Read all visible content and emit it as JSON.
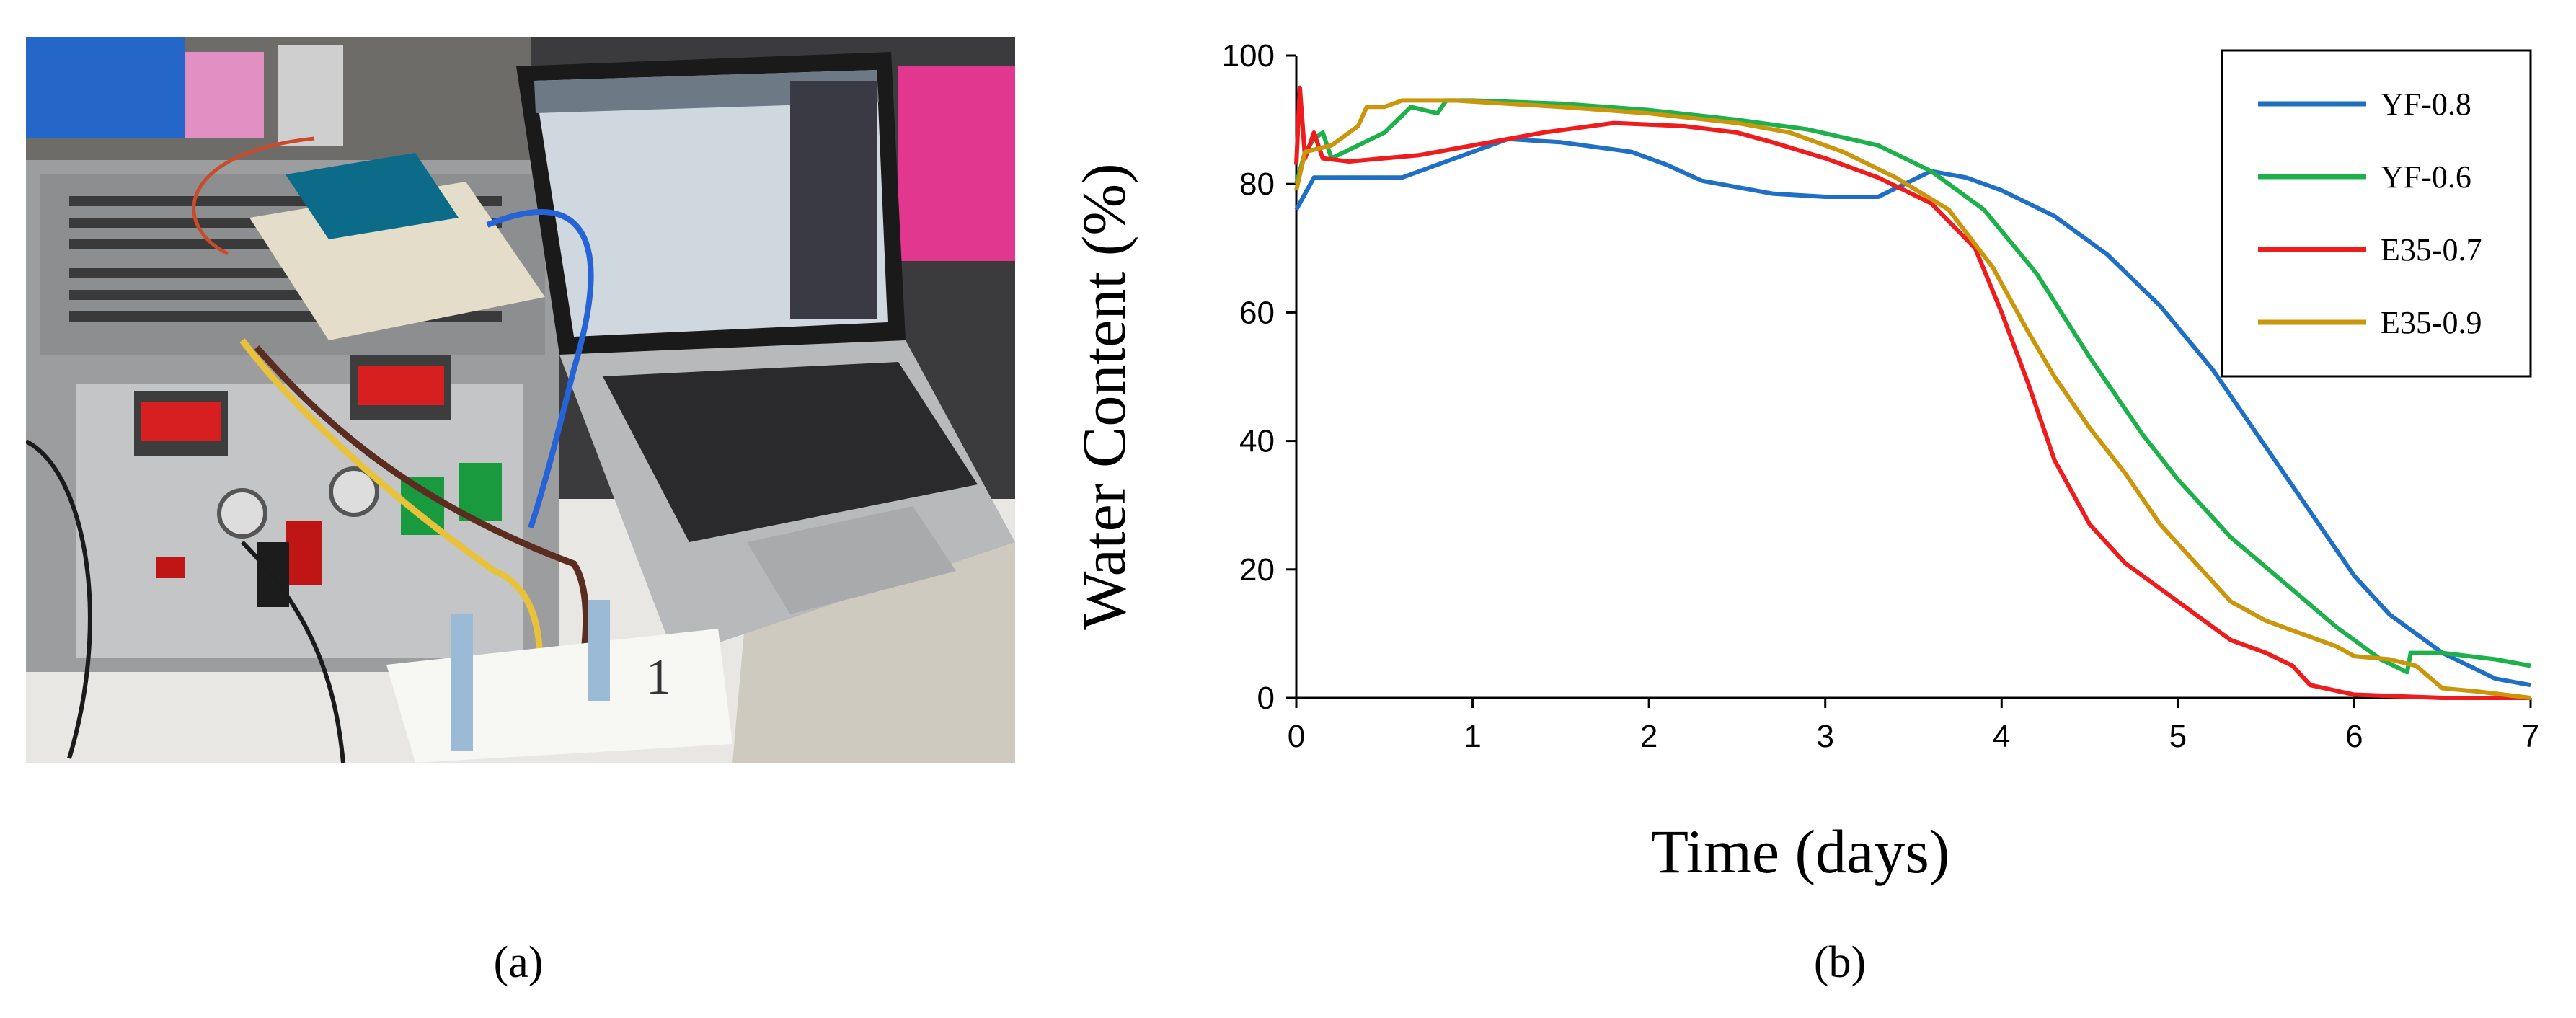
{
  "figure": {
    "panel_a_label": "(a)",
    "panel_b_label": "(b)"
  },
  "photo": {
    "description_items": [
      "power-supply",
      "breadboard",
      "arduino-board",
      "laptop",
      "soil-moisture-sensors"
    ],
    "handwritten_note": "1"
  },
  "colors": {
    "YF-0.8": "#1f6fc5",
    "YF-0.6": "#1db04b",
    "E35-0.7": "#ee1c1c",
    "E35-0.9": "#c9960c"
  },
  "chart_data": {
    "type": "line",
    "title": "",
    "xlabel": "Time (days)",
    "ylabel": "Water Content (%)",
    "xlim": [
      0,
      7
    ],
    "ylim": [
      0,
      100
    ],
    "xticks": [
      "0",
      "1",
      "2",
      "3",
      "4",
      "5",
      "6",
      "7"
    ],
    "yticks": [
      "0",
      "20",
      "40",
      "60",
      "80",
      "100"
    ],
    "grid": false,
    "legend_position": "top-right",
    "series": [
      {
        "name": "YF-0.8",
        "points": [
          [
            0,
            76
          ],
          [
            0.1,
            81
          ],
          [
            0.3,
            81
          ],
          [
            0.6,
            81
          ],
          [
            0.9,
            84
          ],
          [
            1.2,
            87
          ],
          [
            1.5,
            86.5
          ],
          [
            1.9,
            85
          ],
          [
            2.1,
            83
          ],
          [
            2.3,
            80.5
          ],
          [
            2.7,
            78.5
          ],
          [
            3.0,
            78
          ],
          [
            3.3,
            78
          ],
          [
            3.45,
            80
          ],
          [
            3.6,
            82
          ],
          [
            3.8,
            81
          ],
          [
            4.0,
            79
          ],
          [
            4.3,
            75
          ],
          [
            4.6,
            69
          ],
          [
            4.9,
            61
          ],
          [
            5.2,
            51
          ],
          [
            5.4,
            43
          ],
          [
            5.6,
            35
          ],
          [
            5.8,
            27
          ],
          [
            6.0,
            19
          ],
          [
            6.2,
            13
          ],
          [
            6.5,
            7
          ],
          [
            6.8,
            3
          ],
          [
            7.0,
            2
          ]
        ]
      },
      {
        "name": "YF-0.6",
        "points": [
          [
            0,
            80
          ],
          [
            0.05,
            85
          ],
          [
            0.1,
            87
          ],
          [
            0.15,
            88
          ],
          [
            0.2,
            84
          ],
          [
            0.35,
            86
          ],
          [
            0.5,
            88
          ],
          [
            0.65,
            92
          ],
          [
            0.8,
            91
          ],
          [
            0.85,
            93
          ],
          [
            1.0,
            93
          ],
          [
            1.5,
            92.5
          ],
          [
            2.0,
            91.5
          ],
          [
            2.5,
            90
          ],
          [
            2.9,
            88.5
          ],
          [
            3.3,
            86
          ],
          [
            3.6,
            82
          ],
          [
            3.9,
            76
          ],
          [
            4.2,
            66
          ],
          [
            4.5,
            53
          ],
          [
            4.8,
            41
          ],
          [
            5.0,
            34
          ],
          [
            5.3,
            25
          ],
          [
            5.6,
            18
          ],
          [
            5.9,
            11
          ],
          [
            6.15,
            6
          ],
          [
            6.3,
            4
          ],
          [
            6.32,
            7
          ],
          [
            6.5,
            7
          ],
          [
            6.8,
            6
          ],
          [
            7.0,
            5
          ]
        ]
      },
      {
        "name": "E35-0.7",
        "points": [
          [
            0,
            83
          ],
          [
            0.02,
            95
          ],
          [
            0.05,
            84
          ],
          [
            0.1,
            88
          ],
          [
            0.15,
            84
          ],
          [
            0.3,
            83.5
          ],
          [
            0.7,
            84.5
          ],
          [
            1.0,
            86
          ],
          [
            1.4,
            88
          ],
          [
            1.8,
            89.5
          ],
          [
            2.2,
            89
          ],
          [
            2.5,
            88
          ],
          [
            2.7,
            86.5
          ],
          [
            3.0,
            84
          ],
          [
            3.3,
            81
          ],
          [
            3.6,
            77
          ],
          [
            3.85,
            70
          ],
          [
            4.0,
            60
          ],
          [
            4.15,
            49
          ],
          [
            4.3,
            37
          ],
          [
            4.5,
            27
          ],
          [
            4.7,
            21
          ],
          [
            4.9,
            17
          ],
          [
            5.1,
            13
          ],
          [
            5.3,
            9
          ],
          [
            5.5,
            7
          ],
          [
            5.65,
            5
          ],
          [
            5.75,
            2
          ],
          [
            6.0,
            0.5
          ],
          [
            6.5,
            0
          ],
          [
            7.0,
            0
          ]
        ]
      },
      {
        "name": "E35-0.9",
        "points": [
          [
            0,
            79
          ],
          [
            0.05,
            85
          ],
          [
            0.2,
            86
          ],
          [
            0.35,
            89
          ],
          [
            0.4,
            92
          ],
          [
            0.5,
            92
          ],
          [
            0.6,
            93
          ],
          [
            0.9,
            93
          ],
          [
            1.5,
            92
          ],
          [
            2.0,
            91
          ],
          [
            2.5,
            89.5
          ],
          [
            2.8,
            88
          ],
          [
            3.1,
            85
          ],
          [
            3.4,
            81
          ],
          [
            3.7,
            76
          ],
          [
            3.95,
            67
          ],
          [
            4.15,
            57
          ],
          [
            4.3,
            50
          ],
          [
            4.5,
            42
          ],
          [
            4.7,
            35
          ],
          [
            4.9,
            27
          ],
          [
            5.1,
            21
          ],
          [
            5.3,
            15
          ],
          [
            5.5,
            12
          ],
          [
            5.7,
            10
          ],
          [
            5.9,
            8
          ],
          [
            6.0,
            6.5
          ],
          [
            6.2,
            6
          ],
          [
            6.35,
            5
          ],
          [
            6.5,
            1.5
          ],
          [
            6.7,
            1
          ],
          [
            7.0,
            0
          ]
        ]
      }
    ]
  }
}
